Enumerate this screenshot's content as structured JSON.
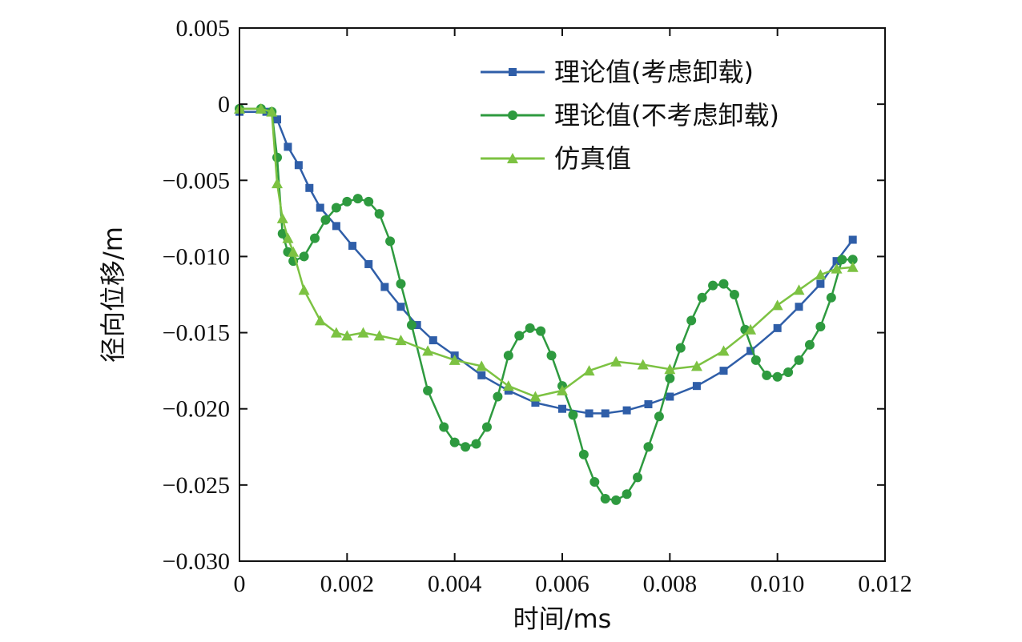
{
  "chart_data": {
    "type": "line",
    "xlabel": "时间/ms",
    "ylabel": "径向位移/m",
    "xlim": [
      0,
      0.012
    ],
    "ylim": [
      -0.03,
      0.005
    ],
    "x_ticks": [
      0,
      0.002,
      0.004,
      0.006,
      0.008,
      0.01,
      0.012
    ],
    "x_tick_labels": [
      "0",
      "0.002",
      "0.004",
      "0.006",
      "0.008",
      "0.010",
      "0.012"
    ],
    "y_ticks": [
      0.005,
      0,
      -0.005,
      -0.01,
      -0.015,
      -0.02,
      -0.025,
      -0.03
    ],
    "y_tick_labels": [
      "0.005",
      "0",
      "−0.005",
      "−0.010",
      "−0.015",
      "−0.020",
      "−0.025",
      "−0.030"
    ],
    "grid": false,
    "legend_position": "top-right",
    "series": [
      {
        "name": "理论值(考虑卸载)",
        "color": "#2f5ea8",
        "marker": "square",
        "x": [
          0,
          0.0005,
          0.0007,
          0.0009,
          0.0011,
          0.0013,
          0.0015,
          0.0018,
          0.0021,
          0.0024,
          0.0027,
          0.003,
          0.0033,
          0.0036,
          0.004,
          0.0045,
          0.005,
          0.0055,
          0.006,
          0.0065,
          0.0068,
          0.0072,
          0.0076,
          0.008,
          0.0085,
          0.009,
          0.0095,
          0.01,
          0.0104,
          0.0108,
          0.0111,
          0.0114
        ],
        "y": [
          -0.0005,
          -0.0005,
          -0.001,
          -0.0028,
          -0.004,
          -0.0055,
          -0.0068,
          -0.008,
          -0.0093,
          -0.0105,
          -0.012,
          -0.0133,
          -0.0145,
          -0.0155,
          -0.0165,
          -0.0178,
          -0.0188,
          -0.0196,
          -0.02,
          -0.0203,
          -0.0203,
          -0.0201,
          -0.0197,
          -0.0192,
          -0.0185,
          -0.0175,
          -0.0162,
          -0.0147,
          -0.0133,
          -0.0118,
          -0.0103,
          -0.0089
        ]
      },
      {
        "name": "理论值(不考虑卸载)",
        "color": "#2e9a3f",
        "marker": "circle",
        "x": [
          0,
          0.0004,
          0.0006,
          0.0007,
          0.0008,
          0.0009,
          0.001,
          0.0012,
          0.0014,
          0.0016,
          0.0018,
          0.002,
          0.0022,
          0.0024,
          0.0026,
          0.0028,
          0.003,
          0.0032,
          0.0035,
          0.0038,
          0.004,
          0.0042,
          0.0044,
          0.0046,
          0.0048,
          0.005,
          0.0052,
          0.0054,
          0.0056,
          0.0058,
          0.006,
          0.0062,
          0.0064,
          0.0066,
          0.0068,
          0.007,
          0.0072,
          0.0074,
          0.0076,
          0.0078,
          0.008,
          0.0082,
          0.0084,
          0.0086,
          0.0088,
          0.009,
          0.0092,
          0.0094,
          0.0096,
          0.0098,
          0.01,
          0.0102,
          0.0104,
          0.0106,
          0.0108,
          0.011,
          0.0112,
          0.0114
        ],
        "y": [
          -0.0003,
          -0.0003,
          -0.0005,
          -0.0035,
          -0.0085,
          -0.0097,
          -0.0103,
          -0.01,
          -0.0088,
          -0.0076,
          -0.0068,
          -0.0064,
          -0.0062,
          -0.0064,
          -0.0072,
          -0.009,
          -0.0118,
          -0.0145,
          -0.0188,
          -0.0212,
          -0.0222,
          -0.0225,
          -0.0223,
          -0.0212,
          -0.0192,
          -0.0165,
          -0.0152,
          -0.0147,
          -0.0149,
          -0.0165,
          -0.0185,
          -0.0204,
          -0.023,
          -0.0248,
          -0.0259,
          -0.026,
          -0.0256,
          -0.0245,
          -0.0225,
          -0.0205,
          -0.018,
          -0.016,
          -0.0142,
          -0.0127,
          -0.0119,
          -0.0118,
          -0.0125,
          -0.0148,
          -0.0168,
          -0.0178,
          -0.0179,
          -0.0176,
          -0.0168,
          -0.0158,
          -0.0146,
          -0.0127,
          -0.0102,
          -0.0102
        ]
      },
      {
        "name": "仿真值",
        "color": "#7cc242",
        "marker": "triangle",
        "x": [
          0,
          0.0004,
          0.0006,
          0.0007,
          0.0008,
          0.0009,
          0.001,
          0.0012,
          0.0015,
          0.0018,
          0.002,
          0.0023,
          0.0026,
          0.003,
          0.0035,
          0.004,
          0.0045,
          0.005,
          0.0055,
          0.006,
          0.0065,
          0.007,
          0.0075,
          0.008,
          0.0085,
          0.009,
          0.0095,
          0.01,
          0.0104,
          0.0108,
          0.0111,
          0.0114
        ],
        "y": [
          -0.0003,
          -0.0003,
          -0.0005,
          -0.0052,
          -0.0075,
          -0.0088,
          -0.0097,
          -0.0122,
          -0.0142,
          -0.015,
          -0.0152,
          -0.015,
          -0.0152,
          -0.0155,
          -0.0162,
          -0.0168,
          -0.0172,
          -0.0185,
          -0.0192,
          -0.0188,
          -0.0175,
          -0.0169,
          -0.0171,
          -0.0174,
          -0.0172,
          -0.0162,
          -0.0148,
          -0.0132,
          -0.0122,
          -0.0112,
          -0.0108,
          -0.0107
        ]
      }
    ]
  }
}
